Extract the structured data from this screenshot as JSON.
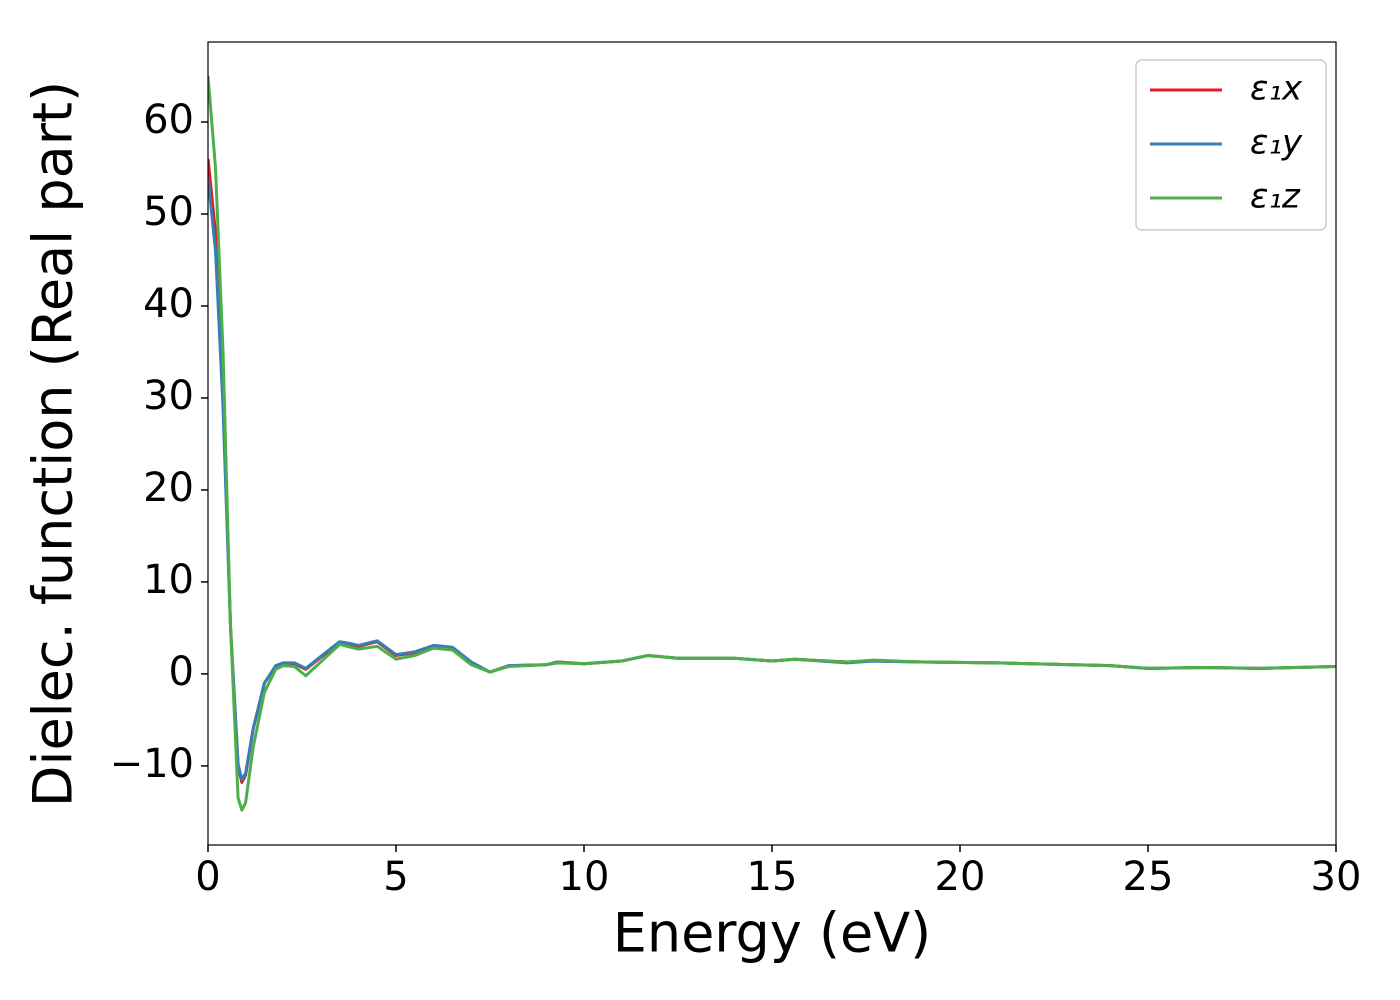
{
  "chart_data": {
    "type": "line",
    "xlabel": "Energy (eV)",
    "ylabel": "Dielec. function (Real part)",
    "x": [
      0,
      0.2,
      0.4,
      0.6,
      0.8,
      0.9,
      1.0,
      1.2,
      1.5,
      1.8,
      2.0,
      2.3,
      2.6,
      3.0,
      3.5,
      3.8,
      4.0,
      4.5,
      5.0,
      5.5,
      6.0,
      6.5,
      7.0,
      7.5,
      8.0,
      9.0,
      9.3,
      10,
      11,
      11.7,
      12.5,
      14,
      15,
      15.6,
      17,
      17.7,
      19,
      21,
      24,
      25,
      26.5,
      28,
      30
    ],
    "series": [
      {
        "name": "ε₁x",
        "color": "#e41a1c",
        "values": [
          56,
          48,
          30,
          5,
          -10,
          -11.8,
          -11,
          -6,
          -1,
          0.8,
          1.1,
          1.1,
          0.5,
          1.8,
          3.4,
          3.2,
          3.0,
          3.5,
          2.0,
          2.3,
          3.0,
          2.8,
          1.2,
          0.2,
          0.9,
          1.0,
          1.3,
          1.1,
          1.4,
          2.0,
          1.7,
          1.7,
          1.4,
          1.6,
          1.3,
          1.4,
          1.3,
          1.2,
          0.9,
          0.6,
          0.7,
          0.6,
          0.8
        ]
      },
      {
        "name": "ε₁y",
        "color": "#377eb8",
        "values": [
          54,
          46,
          29,
          5,
          -9.8,
          -11.5,
          -10.8,
          -6,
          -1,
          0.9,
          1.2,
          1.2,
          0.6,
          1.9,
          3.5,
          3.3,
          3.1,
          3.6,
          2.1,
          2.4,
          3.1,
          2.9,
          1.3,
          0.2,
          0.9,
          1.0,
          1.3,
          1.1,
          1.4,
          2.0,
          1.7,
          1.7,
          1.4,
          1.6,
          1.2,
          1.4,
          1.3,
          1.2,
          0.9,
          0.6,
          0.7,
          0.6,
          0.8
        ]
      },
      {
        "name": "ε₁z",
        "color": "#4daf4a",
        "values": [
          65,
          55,
          35,
          5,
          -13.5,
          -14.8,
          -14,
          -8,
          -2,
          0.5,
          0.9,
          0.8,
          -0.2,
          1.3,
          3.2,
          2.9,
          2.7,
          3.0,
          1.6,
          2.0,
          2.8,
          2.6,
          1.0,
          0.2,
          0.8,
          1.0,
          1.2,
          1.1,
          1.4,
          2.0,
          1.7,
          1.7,
          1.4,
          1.6,
          1.3,
          1.5,
          1.3,
          1.2,
          0.9,
          0.6,
          0.7,
          0.6,
          0.8
        ]
      }
    ],
    "xlim": [
      0,
      30
    ],
    "ylim": [
      -18.6,
      68.7
    ],
    "xticks": [
      0,
      5,
      10,
      15,
      20,
      25,
      30
    ],
    "yticks": [
      {
        "value": -10,
        "label": "−10"
      },
      0,
      10,
      20,
      30,
      40,
      50,
      60
    ],
    "grid": false,
    "legend": "upper right"
  }
}
